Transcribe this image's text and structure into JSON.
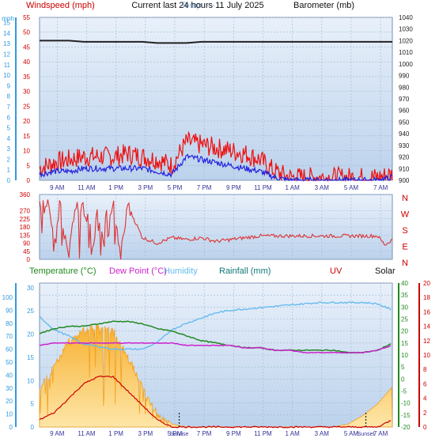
{
  "header": {
    "title": "Current last 24 hours 11 July 2025",
    "windspeed_label": "Windspeed (mph)",
    "overlap_label": "Temp. ---",
    "barometer_label": "Barometer (mb)"
  },
  "colors": {
    "panel_bg_top": "#e8f0fa",
    "panel_bg_bottom": "#bcd2ec",
    "wind": "#ee1111",
    "gust_avg": "#2222dd",
    "pressure": "#222222",
    "direction": "#dd3333",
    "temperature": "#228822",
    "dewpoint": "#cc22cc",
    "humidity": "#66bbee",
    "solar": "#f5a018",
    "left_axis": "#3399dd",
    "wind_axis": "#cc0000",
    "uv_axis": "#cc0000"
  },
  "legend": {
    "temperature": "Temperature (°C)",
    "dewpoint": "Dew Point (°C)",
    "humidity": "Humidity",
    "rainfall": "Rainfall (mm)",
    "uv": "UV",
    "solar": "Solar"
  },
  "axes": {
    "wind_left_unit": "mph",
    "wind_left_ticks": [
      "0",
      "5",
      "10",
      "15",
      "20",
      "25",
      "30",
      "35",
      "40",
      "45",
      "50",
      "55"
    ],
    "wind_outer_ticks": [
      "0",
      "1",
      "2",
      "3",
      "4",
      "5",
      "6",
      "7",
      "8",
      "9",
      "10",
      "11",
      "12",
      "13",
      "14",
      "15"
    ],
    "baro_ticks": [
      "900",
      "910",
      "920",
      "930",
      "940",
      "950",
      "960",
      "970",
      "980",
      "990",
      "1000",
      "1010",
      "1020",
      "1030",
      "1040"
    ],
    "dir_ticks": [
      "0",
      "45",
      "90",
      "135",
      "180",
      "225",
      "270",
      "360"
    ],
    "dir_letters": [
      "N",
      "W",
      "S",
      "E",
      "N"
    ],
    "bottom_left_ticks": [
      "0",
      "5",
      "10",
      "15",
      "20",
      "25",
      "30"
    ],
    "humidity_ticks": [
      "0",
      "10",
      "20",
      "30",
      "40",
      "50",
      "60",
      "70",
      "80",
      "90",
      "100"
    ],
    "temp_ticks": [
      "-20",
      "-15",
      "-10",
      "-5",
      "0",
      "5",
      "10",
      "15",
      "20",
      "25",
      "30",
      "35",
      "40"
    ],
    "uv_ticks": [
      "0",
      "2",
      "4",
      "6",
      "8",
      "10",
      "12",
      "14",
      "16",
      "18",
      "20"
    ],
    "time_ticks": [
      "9 AM",
      "11 AM",
      "1 PM",
      "3 PM",
      "5 PM",
      "7 PM",
      "9 PM",
      "11 PM",
      "1 AM",
      "3 AM",
      "5 AM",
      "7 AM"
    ],
    "sun_labels": [
      "Sunrise",
      "Sunset"
    ]
  },
  "chart_data": [
    {
      "type": "line",
      "x_hours": [
        0,
        1,
        2,
        3,
        4,
        5,
        6,
        7,
        8,
        9,
        10,
        11,
        12,
        13,
        14,
        15,
        16,
        17,
        18,
        19,
        20,
        21,
        22,
        23,
        24
      ],
      "x_ticks": [
        "9 AM",
        "11 AM",
        "1 PM",
        "3 PM",
        "5 PM",
        "7 PM",
        "9 PM",
        "11 PM",
        "1 AM",
        "3 AM",
        "5 AM",
        "7 AM"
      ],
      "series": [
        {
          "name": "Windspeed (mph)",
          "axis": "wind",
          "values": [
            4,
            6,
            7,
            8,
            8,
            8,
            9,
            8,
            7,
            5,
            13,
            12,
            11,
            10,
            9,
            7,
            3,
            1,
            1,
            1,
            1,
            1,
            1,
            1,
            2
          ]
        },
        {
          "name": "Windspeed avg",
          "axis": "wind",
          "values": [
            2,
            3,
            3,
            4,
            4,
            4,
            4,
            4,
            3,
            2,
            8,
            7,
            6,
            5,
            4,
            3,
            1,
            0,
            0,
            0,
            0,
            0,
            0,
            0,
            1
          ]
        },
        {
          "name": "Barometer (mb)",
          "axis": "baro",
          "values": [
            1020,
            1020,
            1020,
            1019,
            1019,
            1019,
            1019,
            1019,
            1018,
            1018,
            1018,
            1019,
            1019,
            1019,
            1019,
            1019,
            1019,
            1019,
            1019,
            1019,
            1019,
            1019,
            1019,
            1019,
            1019
          ]
        }
      ],
      "ylim_wind": [
        0,
        55
      ],
      "ylim_baro": [
        900,
        1040
      ]
    },
    {
      "type": "scatter",
      "name": "Wind direction",
      "x_hours": [
        0,
        0.5,
        1,
        1.5,
        2,
        2.5,
        3,
        3.5,
        4,
        4.5,
        5,
        5.5,
        6,
        7,
        8,
        9,
        10,
        11,
        12,
        13,
        14,
        15,
        16,
        17,
        18,
        19,
        20,
        21,
        22,
        23,
        23.5,
        24
      ],
      "values": [
        300,
        340,
        60,
        330,
        20,
        330,
        280,
        10,
        300,
        40,
        330,
        20,
        300,
        120,
        90,
        120,
        110,
        120,
        100,
        110,
        120,
        130,
        130,
        130,
        130,
        130,
        130,
        130,
        130,
        130,
        80,
        110
      ],
      "ylim": [
        0,
        360
      ]
    },
    {
      "type": "area",
      "x_hours": [
        0,
        1,
        2,
        3,
        4,
        5,
        6,
        7,
        8,
        9,
        10,
        11,
        12,
        13,
        14,
        15,
        16,
        17,
        18,
        19,
        20,
        21,
        22,
        23,
        24
      ],
      "series": [
        {
          "name": "Temperature (°C)",
          "axis": "temp",
          "values": [
            19,
            21,
            22,
            22,
            23,
            24,
            24,
            23,
            21,
            20,
            18,
            16,
            15,
            14,
            13,
            13,
            12,
            12,
            12,
            12,
            12,
            11,
            11,
            12,
            15
          ]
        },
        {
          "name": "Dew Point (°C)",
          "axis": "temp",
          "values": [
            14,
            15,
            15,
            15,
            15,
            15,
            15,
            15,
            15,
            15,
            14,
            14,
            14,
            14,
            13,
            13,
            12,
            12,
            11,
            11,
            11,
            11,
            11,
            12,
            14
          ]
        },
        {
          "name": "Humidity",
          "axis": "humidity",
          "values": [
            85,
            75,
            70,
            64,
            62,
            60,
            60,
            60,
            65,
            75,
            80,
            84,
            88,
            90,
            91,
            92,
            93,
            94,
            95,
            96,
            96,
            96,
            96,
            95,
            90
          ]
        },
        {
          "name": "Solar",
          "axis": "temp_norm",
          "values": [
            0.28,
            0.45,
            0.62,
            0.7,
            0.72,
            0.7,
            0.52,
            0.3,
            0.12,
            0.02,
            0,
            0,
            0,
            0,
            0,
            0,
            0,
            0,
            0,
            0,
            0,
            0.02,
            0.08,
            0.16,
            0.28
          ]
        },
        {
          "name": "UV",
          "axis": "uv",
          "values": [
            1,
            2,
            4,
            6,
            7,
            7,
            5,
            3,
            1,
            0,
            0,
            0,
            0,
            0,
            0,
            0,
            0,
            0,
            0,
            0,
            0,
            0,
            0,
            0,
            1
          ]
        }
      ],
      "ylim_temp": [
        -20,
        40
      ],
      "ylim_humidity": [
        0,
        100
      ],
      "ylim_uv": [
        0,
        20
      ]
    }
  ]
}
